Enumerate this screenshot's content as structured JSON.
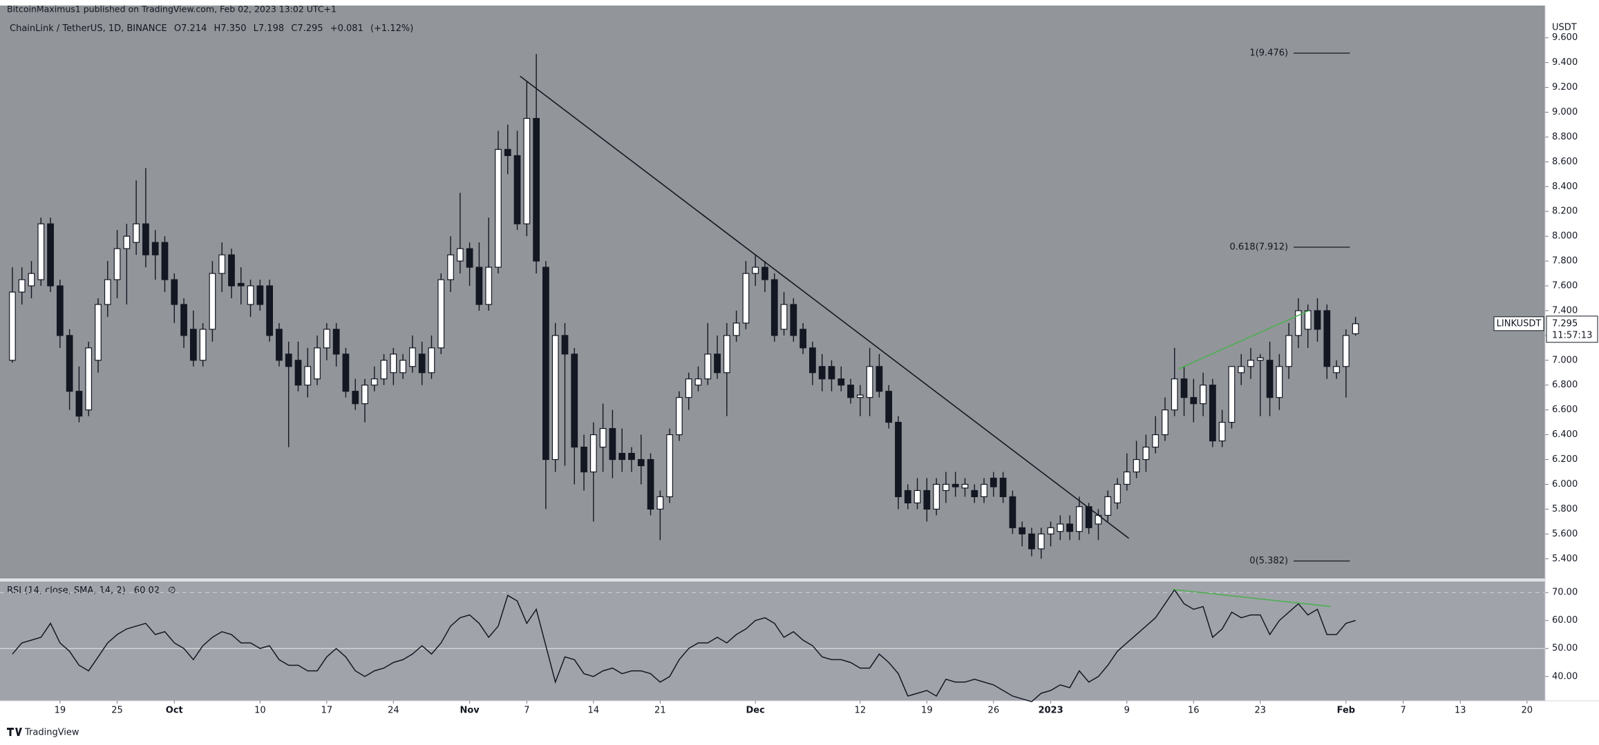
{
  "page": {
    "header": "BitcoinMaximus1 published on TradingView.com, Feb 02, 2023 13:02 UTC+1",
    "brand": "TradingView"
  },
  "chart_data": [
    {
      "type": "candlestick",
      "legend": {
        "symbol": "ChainLink / TetherUS, 1D, BINANCE",
        "keys": [
          "O",
          "H",
          "L",
          "C"
        ],
        "values": [
          7.214,
          {
            "value": 7.35,
            "label": "7.350"
          },
          7.198,
          7.295
        ],
        "change": {
          "value": 0.081,
          "label": "+0.081"
        },
        "change_pct": {
          "value": 1.12,
          "label": "(+1.12%)"
        }
      },
      "y_axis_label": "USDT",
      "symbol_tag": "LINKUSDT",
      "countdown": "11:57:13",
      "up_color": "#ffffff",
      "down_color": "#131722",
      "wick_color": "#131722",
      "open": [
        7.0,
        7.55,
        7.6,
        7.65,
        8.1,
        7.6,
        7.2,
        6.75,
        6.6,
        7.0,
        7.45,
        7.65,
        7.9,
        7.95,
        8.1,
        7.95,
        7.95,
        7.65,
        7.45,
        7.25,
        7.0,
        7.25,
        7.7,
        7.85,
        7.62,
        7.45,
        7.6,
        7.6,
        7.25,
        7.05,
        7.0,
        6.8,
        6.85,
        7.1,
        7.25,
        7.05,
        6.75,
        6.65,
        6.8,
        6.85,
        6.9,
        6.9,
        6.95,
        7.05,
        6.9,
        7.1,
        7.65,
        7.8,
        7.9,
        7.75,
        7.45,
        7.75,
        8.7,
        8.65,
        8.1,
        8.95,
        7.75,
        6.2,
        7.2,
        7.05,
        6.3,
        6.1,
        6.3,
        6.45,
        6.25,
        6.25,
        6.2,
        6.2,
        5.8,
        5.9,
        6.4,
        6.7,
        6.8,
        6.85,
        7.05,
        6.9,
        7.2,
        7.3,
        7.7,
        7.75,
        7.65,
        7.25,
        7.45,
        7.25,
        7.1,
        6.95,
        6.95,
        6.85,
        6.8,
        6.7,
        6.7,
        6.95,
        6.75,
        6.5,
        5.95,
        5.85,
        5.95,
        5.8,
        5.95,
        6.0,
        5.97,
        5.95,
        5.9,
        6.05,
        6.05,
        5.9,
        5.65,
        5.6,
        5.48,
        5.6,
        5.62,
        5.68,
        5.62,
        5.82,
        5.68,
        5.75,
        5.85,
        6.0,
        6.1,
        6.2,
        6.3,
        6.4,
        6.6,
        6.85,
        6.7,
        6.65,
        6.8,
        6.35,
        6.5,
        6.9,
        6.95,
        7.0,
        7.0,
        6.7,
        6.95,
        7.2,
        7.25,
        7.4,
        7.4,
        6.9,
        6.95,
        7.214
      ],
      "high": [
        7.75,
        7.75,
        7.8,
        8.15,
        8.15,
        7.65,
        7.25,
        6.95,
        7.15,
        7.5,
        7.8,
        8.05,
        8.1,
        8.45,
        8.55,
        8.05,
        8.0,
        7.7,
        7.5,
        7.4,
        7.3,
        7.8,
        7.95,
        7.9,
        7.75,
        7.65,
        7.65,
        7.65,
        7.3,
        7.15,
        7.15,
        7.1,
        7.2,
        7.3,
        7.3,
        7.1,
        6.85,
        6.85,
        6.95,
        7.05,
        7.1,
        7.05,
        7.2,
        7.15,
        7.2,
        7.7,
        8.0,
        8.35,
        7.95,
        7.95,
        8.15,
        8.85,
        8.9,
        8.85,
        9.25,
        9.47,
        7.8,
        7.3,
        7.3,
        7.1,
        6.4,
        6.5,
        6.65,
        6.6,
        6.45,
        6.3,
        6.4,
        6.25,
        5.95,
        6.45,
        6.75,
        6.9,
        6.95,
        7.3,
        7.2,
        7.3,
        7.4,
        7.8,
        7.85,
        7.8,
        7.7,
        7.55,
        7.5,
        7.3,
        7.15,
        7.05,
        7.0,
        6.95,
        6.85,
        6.8,
        7.1,
        7.05,
        6.8,
        6.55,
        6.0,
        6.05,
        6.05,
        6.05,
        6.1,
        6.1,
        6.05,
        6.0,
        6.05,
        6.1,
        6.1,
        5.95,
        5.7,
        5.65,
        5.65,
        5.7,
        5.75,
        5.75,
        5.9,
        5.85,
        5.8,
        5.95,
        6.05,
        6.25,
        6.35,
        6.4,
        6.55,
        6.7,
        7.1,
        6.95,
        6.85,
        6.9,
        6.85,
        6.6,
        6.95,
        7.05,
        7.1,
        7.05,
        7.15,
        7.05,
        7.3,
        7.5,
        7.45,
        7.5,
        7.45,
        7.0,
        7.25,
        7.35
      ],
      "low": [
        6.98,
        7.45,
        7.5,
        7.6,
        7.55,
        7.1,
        6.6,
        6.5,
        6.55,
        6.9,
        7.35,
        7.5,
        7.45,
        7.85,
        7.75,
        7.65,
        7.55,
        7.3,
        7.1,
        6.95,
        6.95,
        7.15,
        7.55,
        7.5,
        7.45,
        7.35,
        7.4,
        7.15,
        6.95,
        6.3,
        6.75,
        6.7,
        6.8,
        7.0,
        6.95,
        6.7,
        6.6,
        6.5,
        6.75,
        6.8,
        6.8,
        6.85,
        6.9,
        6.8,
        6.85,
        7.05,
        7.55,
        7.7,
        7.6,
        7.4,
        7.4,
        7.7,
        8.5,
        8.05,
        8.0,
        7.7,
        5.8,
        6.1,
        6.15,
        6.0,
        5.95,
        5.7,
        6.1,
        6.05,
        6.1,
        6.1,
        6.0,
        5.75,
        5.55,
        5.85,
        6.35,
        6.6,
        6.75,
        6.8,
        6.85,
        6.55,
        7.15,
        7.25,
        7.6,
        7.55,
        7.15,
        7.2,
        7.15,
        7.05,
        6.8,
        6.75,
        6.75,
        6.75,
        6.65,
        6.55,
        6.55,
        6.7,
        6.45,
        5.8,
        5.8,
        5.8,
        5.7,
        5.75,
        5.85,
        5.9,
        5.9,
        5.85,
        5.85,
        5.9,
        5.85,
        5.6,
        5.5,
        5.42,
        5.4,
        5.5,
        5.55,
        5.55,
        5.55,
        5.6,
        5.55,
        5.7,
        5.8,
        5.95,
        6.05,
        6.1,
        6.25,
        6.35,
        6.55,
        6.55,
        6.5,
        6.55,
        6.3,
        6.3,
        6.45,
        6.8,
        6.85,
        6.55,
        6.55,
        6.6,
        6.85,
        7.1,
        7.1,
        7.15,
        6.85,
        6.85,
        6.7,
        7.198
      ],
      "close": [
        7.55,
        7.65,
        7.7,
        8.1,
        7.6,
        7.2,
        6.75,
        6.55,
        7.1,
        7.45,
        7.65,
        7.9,
        8.0,
        8.1,
        7.85,
        7.85,
        7.65,
        7.45,
        7.2,
        7.0,
        7.25,
        7.7,
        7.85,
        7.6,
        7.6,
        7.6,
        7.45,
        7.2,
        7.0,
        6.95,
        6.8,
        6.95,
        7.1,
        7.25,
        7.05,
        6.75,
        6.65,
        6.8,
        6.85,
        7.0,
        7.05,
        7.0,
        7.1,
        6.9,
        7.1,
        7.65,
        7.85,
        7.9,
        7.75,
        7.45,
        7.75,
        8.7,
        8.65,
        8.1,
        8.95,
        7.8,
        6.2,
        7.2,
        7.05,
        6.3,
        6.1,
        6.4,
        6.45,
        6.2,
        6.2,
        6.2,
        6.15,
        5.8,
        5.9,
        6.4,
        6.7,
        6.85,
        6.85,
        7.05,
        6.9,
        7.2,
        7.3,
        7.7,
        7.75,
        7.65,
        7.2,
        7.45,
        7.2,
        7.1,
        6.9,
        6.85,
        6.85,
        6.8,
        6.7,
        6.72,
        6.95,
        6.75,
        6.5,
        5.9,
        5.85,
        5.95,
        5.8,
        6.0,
        6.0,
        5.98,
        6.0,
        5.9,
        6.0,
        5.98,
        5.9,
        5.65,
        5.6,
        5.48,
        5.6,
        5.65,
        5.68,
        5.62,
        5.82,
        5.65,
        5.75,
        5.9,
        6.0,
        6.1,
        6.2,
        6.3,
        6.4,
        6.6,
        6.85,
        6.7,
        6.65,
        6.8,
        6.35,
        6.5,
        6.95,
        6.95,
        7.0,
        7.02,
        6.7,
        6.95,
        7.2,
        7.4,
        7.4,
        7.25,
        6.95,
        6.95,
        7.2,
        7.295
      ],
      "xlim": [
        -1.3,
        160.9
      ],
      "xticks": [
        {
          "value": 5,
          "label": "19"
        },
        {
          "value": 11,
          "label": "25"
        },
        {
          "value": 17,
          "label": "Oct"
        },
        {
          "value": 26,
          "label": "10"
        },
        {
          "value": 33,
          "label": "17"
        },
        {
          "value": 40,
          "label": "24"
        },
        {
          "value": 48,
          "label": "Nov"
        },
        {
          "value": 54,
          "label": "7"
        },
        {
          "value": 61,
          "label": "14"
        },
        {
          "value": 68,
          "label": "21"
        },
        {
          "value": 78,
          "label": "Dec"
        },
        {
          "value": 89,
          "label": "12"
        },
        {
          "value": 96,
          "label": "19"
        },
        {
          "value": 103,
          "label": "26"
        },
        {
          "value": 109,
          "label": "2023"
        },
        {
          "value": 117,
          "label": "9"
        },
        {
          "value": 124,
          "label": "16"
        },
        {
          "value": 131,
          "label": "23"
        },
        {
          "value": 140,
          "label": "Feb"
        },
        {
          "value": 146,
          "label": "7"
        },
        {
          "value": 152,
          "label": "13"
        },
        {
          "value": 159,
          "label": "20"
        }
      ],
      "ylim": [
        5.24,
        9.86
      ],
      "yticks": [
        {
          "value": 5.4,
          "label": "5.400"
        },
        {
          "value": 5.6,
          "label": "5.600"
        },
        {
          "value": 5.8,
          "label": "5.800"
        },
        {
          "value": 6.0,
          "label": "6.000"
        },
        {
          "value": 6.2,
          "label": "6.200"
        },
        {
          "value": 6.4,
          "label": "6.400"
        },
        {
          "value": 6.6,
          "label": "6.600"
        },
        {
          "value": 6.8,
          "label": "6.800"
        },
        {
          "value": 7.0,
          "label": "7.000"
        },
        {
          "value": 7.2,
          "label": "7.200"
        },
        {
          "value": 7.4,
          "label": "7.400"
        },
        {
          "value": 7.6,
          "label": "7.600"
        },
        {
          "value": 7.8,
          "label": "7.800"
        },
        {
          "value": 8.0,
          "label": "8.000"
        },
        {
          "value": 8.2,
          "label": "8.200"
        },
        {
          "value": 8.4,
          "label": "8.400"
        },
        {
          "value": 8.6,
          "label": "8.600"
        },
        {
          "value": 8.8,
          "label": "8.800"
        },
        {
          "value": 9.0,
          "label": "9.000"
        },
        {
          "value": 9.2,
          "label": "9.200"
        },
        {
          "value": 9.4,
          "label": "9.400"
        },
        {
          "value": 9.6,
          "label": "9.600"
        }
      ],
      "grid": false,
      "fib_levels": [
        {
          "value": 9.476,
          "label": "1(9.476)"
        },
        {
          "value": 7.912,
          "label": "0.618(7.912)"
        },
        {
          "value": 5.382,
          "label": "0(5.382)"
        }
      ],
      "fib_range": [
        134.5,
        140.4
      ],
      "trendlines": [
        {
          "color": "#131722",
          "x": [
            53.3,
            117.2
          ],
          "y": [
            9.29,
            5.565
          ]
        },
        {
          "color": "#4caf50",
          "x": [
            122.4,
            136.1
          ],
          "y": [
            6.93,
            7.4
          ]
        }
      ]
    },
    {
      "type": "line",
      "title": "RSI (14, close, SMA, 14, 2)",
      "color": "#131722",
      "values": [
        48,
        52,
        53,
        54,
        59,
        52,
        49,
        44,
        42,
        47,
        52,
        55,
        57,
        58,
        59,
        55,
        56,
        52,
        50,
        46,
        51,
        54,
        56,
        55,
        52,
        52,
        50,
        51,
        46,
        44,
        44,
        42,
        42,
        47,
        50,
        47,
        42,
        40,
        42,
        43,
        45,
        46,
        48,
        51,
        48,
        52,
        58,
        61,
        62,
        59,
        54,
        58,
        69,
        67,
        59,
        64,
        51,
        38,
        47,
        46,
        41,
        40,
        42,
        43,
        41,
        42,
        42,
        41,
        38,
        40,
        46,
        50,
        52,
        52,
        54,
        52,
        55,
        57,
        60,
        61,
        59,
        54,
        56,
        53,
        51,
        47,
        46,
        46,
        45,
        43,
        43,
        48,
        45,
        41,
        33,
        34,
        35,
        33,
        39,
        38,
        38,
        39,
        38,
        37,
        35,
        33,
        32,
        31,
        34,
        35,
        37,
        36,
        42,
        38,
        40,
        44,
        49,
        52,
        55,
        58,
        61,
        66,
        71,
        66,
        64,
        65,
        54,
        57,
        63,
        61,
        62,
        62,
        55,
        60,
        63,
        66,
        62,
        64,
        55,
        55,
        59,
        60.02
      ],
      "xlim": [
        -1.3,
        160.9
      ],
      "ylim": [
        31.3,
        74.0
      ],
      "yticks": [
        {
          "value": 40,
          "label": "40.00"
        },
        {
          "value": 50,
          "label": "50.00"
        },
        {
          "value": 60,
          "label": "60.00"
        },
        {
          "value": 70,
          "label": "70.00"
        }
      ],
      "upper_band": 70,
      "middle_band": 50,
      "trendlines": [
        {
          "color": "#4caf50",
          "x": [
            121.8,
            138.4
          ],
          "y": [
            71.1,
            65.0
          ]
        }
      ]
    }
  ]
}
